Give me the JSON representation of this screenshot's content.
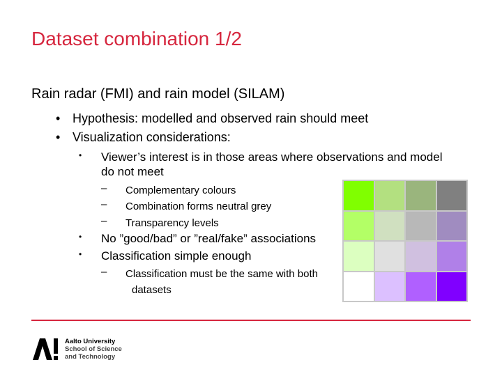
{
  "slide": {
    "title": "Dataset combination 1/2",
    "level1": "Rain radar (FMI) and rain model (SILAM)",
    "bullets": [
      "Hypothesis: modelled and observed rain should meet",
      "Visualization considerations:"
    ],
    "sub_bullet_1_lines": [
      "Viewer’s interest is in those areas where observations and model",
      "do not meet"
    ],
    "dashes_1": [
      "Complementary colours",
      "Combination forms neutral grey",
      "Transparency levels"
    ],
    "sub_bullets_2": [
      "No ”good/bad” or ”real/fake” associations",
      "Classification simple enough"
    ],
    "dash_2_lines": [
      "Classification must be the same with both",
      "datasets"
    ]
  },
  "color_grid": [
    [
      "#80ff00",
      "#b3e080",
      "#9ab57d",
      "#808080"
    ],
    [
      "#b3ff66",
      "#d0e0c0",
      "#b8b8b8",
      "#a08cc0"
    ],
    [
      "#dcffc0",
      "#e0e0e0",
      "#d0c0e0",
      "#b080e8"
    ],
    [
      "#ffffff",
      "#dcc0ff",
      "#b060ff",
      "#8000ff"
    ]
  ],
  "footer": {
    "logo_line1": "Aalto University",
    "logo_line2": "School of Science",
    "logo_line3": "and Technology",
    "accent_color": "#d6263e"
  }
}
